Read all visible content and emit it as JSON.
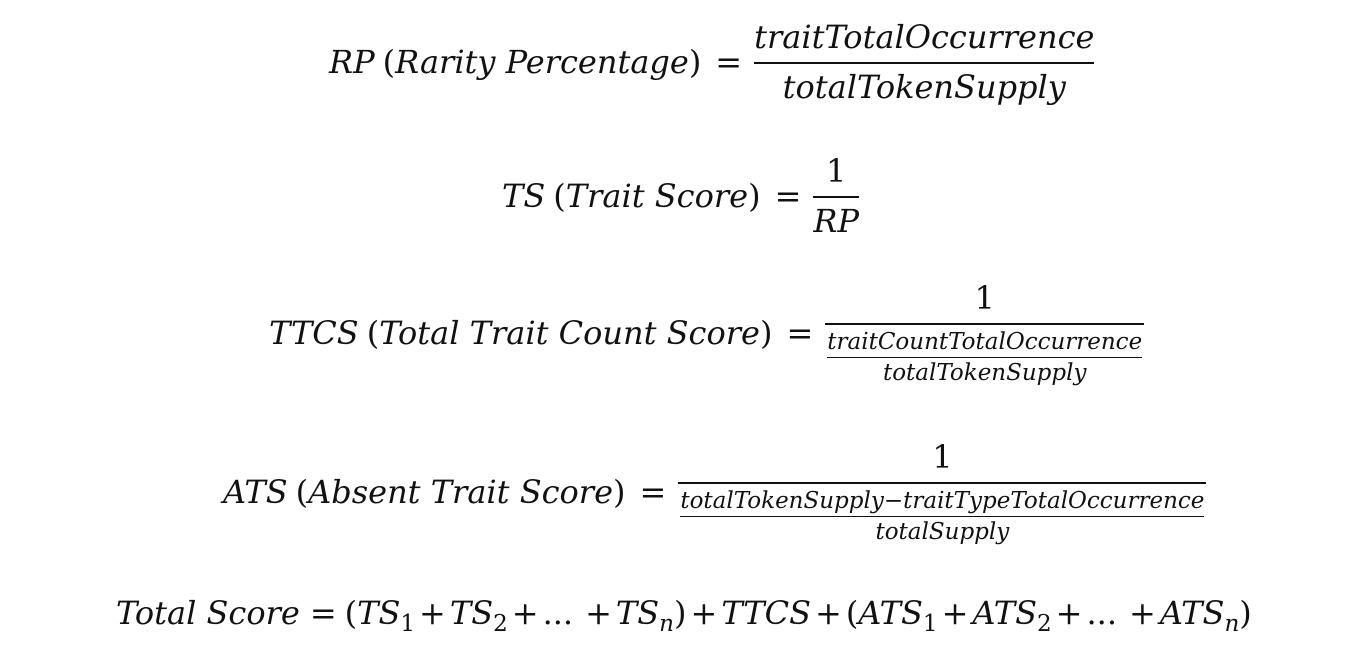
{
  "equations": {
    "rp": {
      "lhs_abbr": "RP",
      "lhs_name": "Rarity Percentage",
      "numerator": "traitTotalOccurrence",
      "denominator": "totalTokenSupply"
    },
    "ts": {
      "lhs_abbr": "TS",
      "lhs_name": "Trait Score",
      "numerator": "1",
      "denominator": "RP"
    },
    "ttcs": {
      "lhs_abbr": "TTCS",
      "lhs_name": "Total Trait Count Score",
      "numerator": "1",
      "inner_numerator": "traitCountTotalOccurrence",
      "inner_denominator": "totalTokenSupply"
    },
    "ats": {
      "lhs_abbr": "ATS",
      "lhs_name": "Absent Trait Score",
      "numerator": "1",
      "inner_numerator": "totalTokenSupply−traitTypeTotalOccurrence",
      "inner_denominator": "totalSupply"
    },
    "total": {
      "lhs": "Total Score",
      "ts": "TS",
      "ttcs": "TTCS",
      "ats": "ATS",
      "sub1": "1",
      "sub2": "2",
      "subn": "n",
      "ellipsis": "..."
    }
  }
}
